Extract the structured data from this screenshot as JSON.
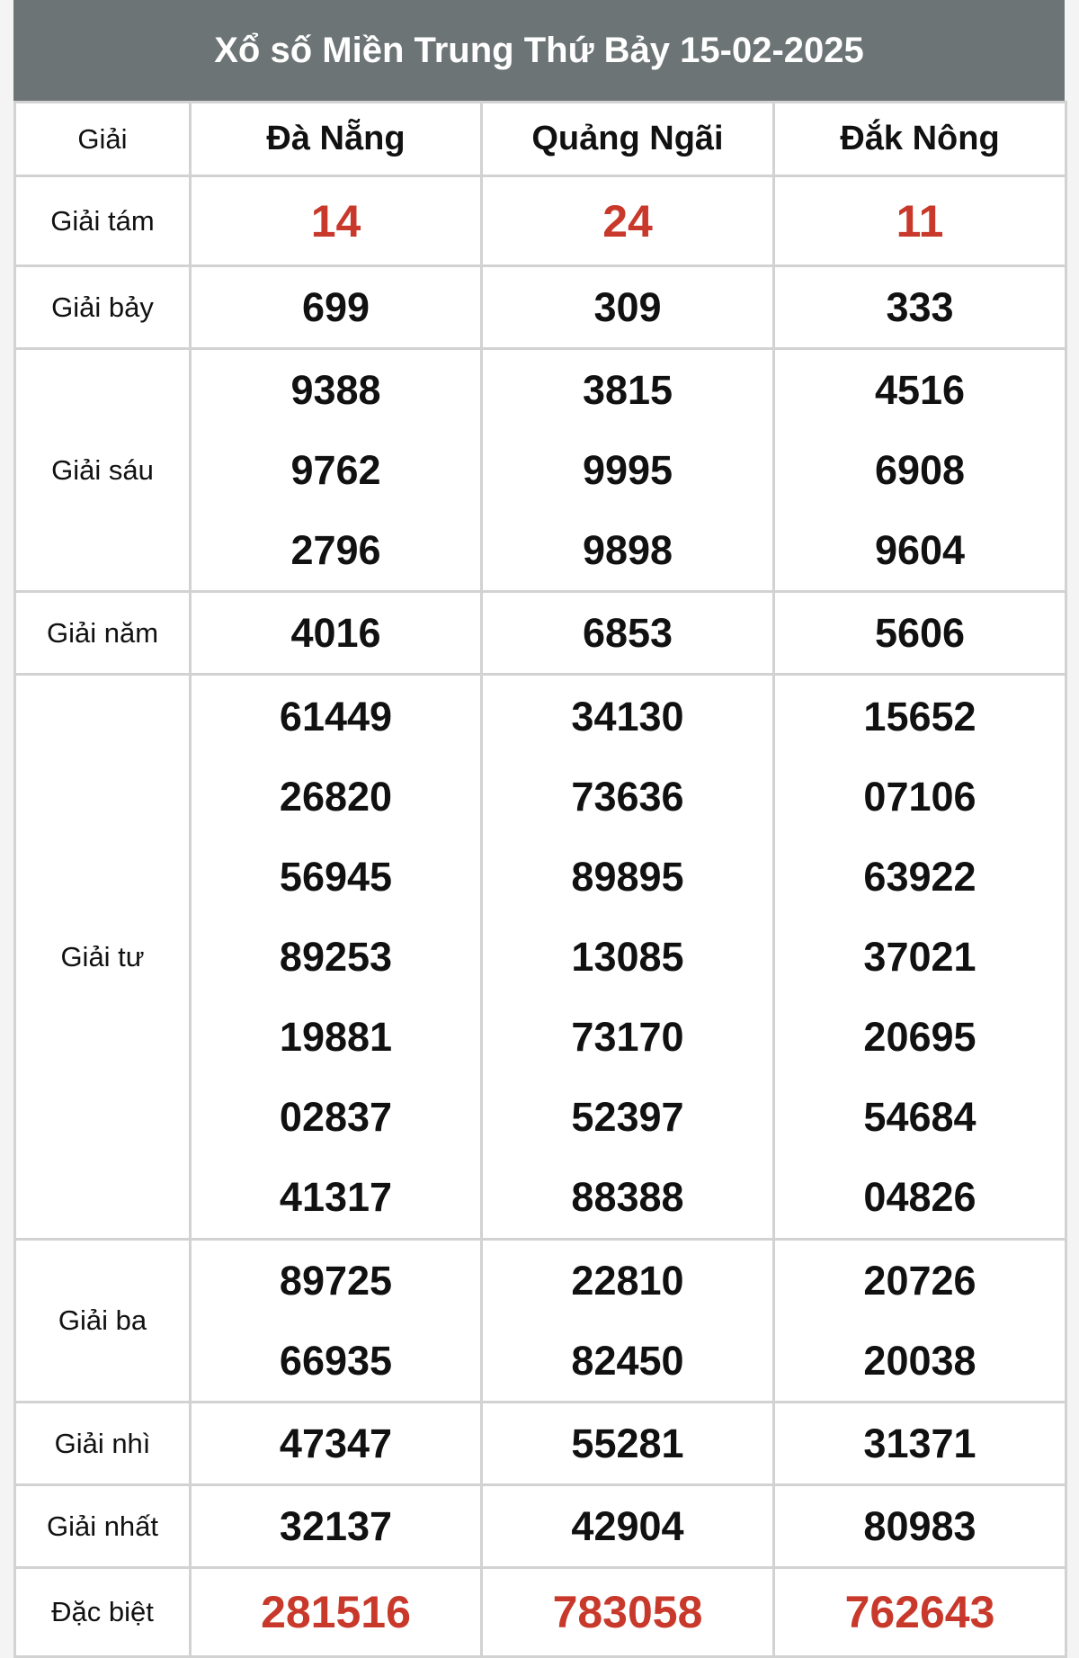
{
  "title": "Xổ số Miền Trung Thứ Bảy 15-02-2025",
  "header": {
    "label": "Giải",
    "provinces": [
      "Đà Nẵng",
      "Quảng Ngãi",
      "Đắk Nông"
    ]
  },
  "colors": {
    "header_bg": "#6d7475",
    "highlight": "#c8392b"
  },
  "rows": [
    {
      "label": "Giải tám",
      "highlight": true,
      "values": [
        [
          "14"
        ],
        [
          "24"
        ],
        [
          "11"
        ]
      ]
    },
    {
      "label": "Giải bảy",
      "values": [
        [
          "699"
        ],
        [
          "309"
        ],
        [
          "333"
        ]
      ]
    },
    {
      "label": "Giải sáu",
      "values": [
        [
          "9388",
          "9762",
          "2796"
        ],
        [
          "3815",
          "9995",
          "9898"
        ],
        [
          "4516",
          "6908",
          "9604"
        ]
      ]
    },
    {
      "label": "Giải năm",
      "values": [
        [
          "4016"
        ],
        [
          "6853"
        ],
        [
          "5606"
        ]
      ]
    },
    {
      "label": "Giải tư",
      "values": [
        [
          "61449",
          "26820",
          "56945",
          "89253",
          "19881",
          "02837",
          "41317"
        ],
        [
          "34130",
          "73636",
          "89895",
          "13085",
          "73170",
          "52397",
          "88388"
        ],
        [
          "15652",
          "07106",
          "63922",
          "37021",
          "20695",
          "54684",
          "04826"
        ]
      ]
    },
    {
      "label": "Giải ba",
      "values": [
        [
          "89725",
          "66935"
        ],
        [
          "22810",
          "82450"
        ],
        [
          "20726",
          "20038"
        ]
      ]
    },
    {
      "label": "Giải nhì",
      "values": [
        [
          "47347"
        ],
        [
          "55281"
        ],
        [
          "31371"
        ]
      ]
    },
    {
      "label": "Giải nhất",
      "values": [
        [
          "32137"
        ],
        [
          "42904"
        ],
        [
          "80983"
        ]
      ]
    },
    {
      "label": "Đặc biệt",
      "highlight": true,
      "values": [
        [
          "281516"
        ],
        [
          "783058"
        ],
        [
          "762643"
        ]
      ]
    }
  ]
}
